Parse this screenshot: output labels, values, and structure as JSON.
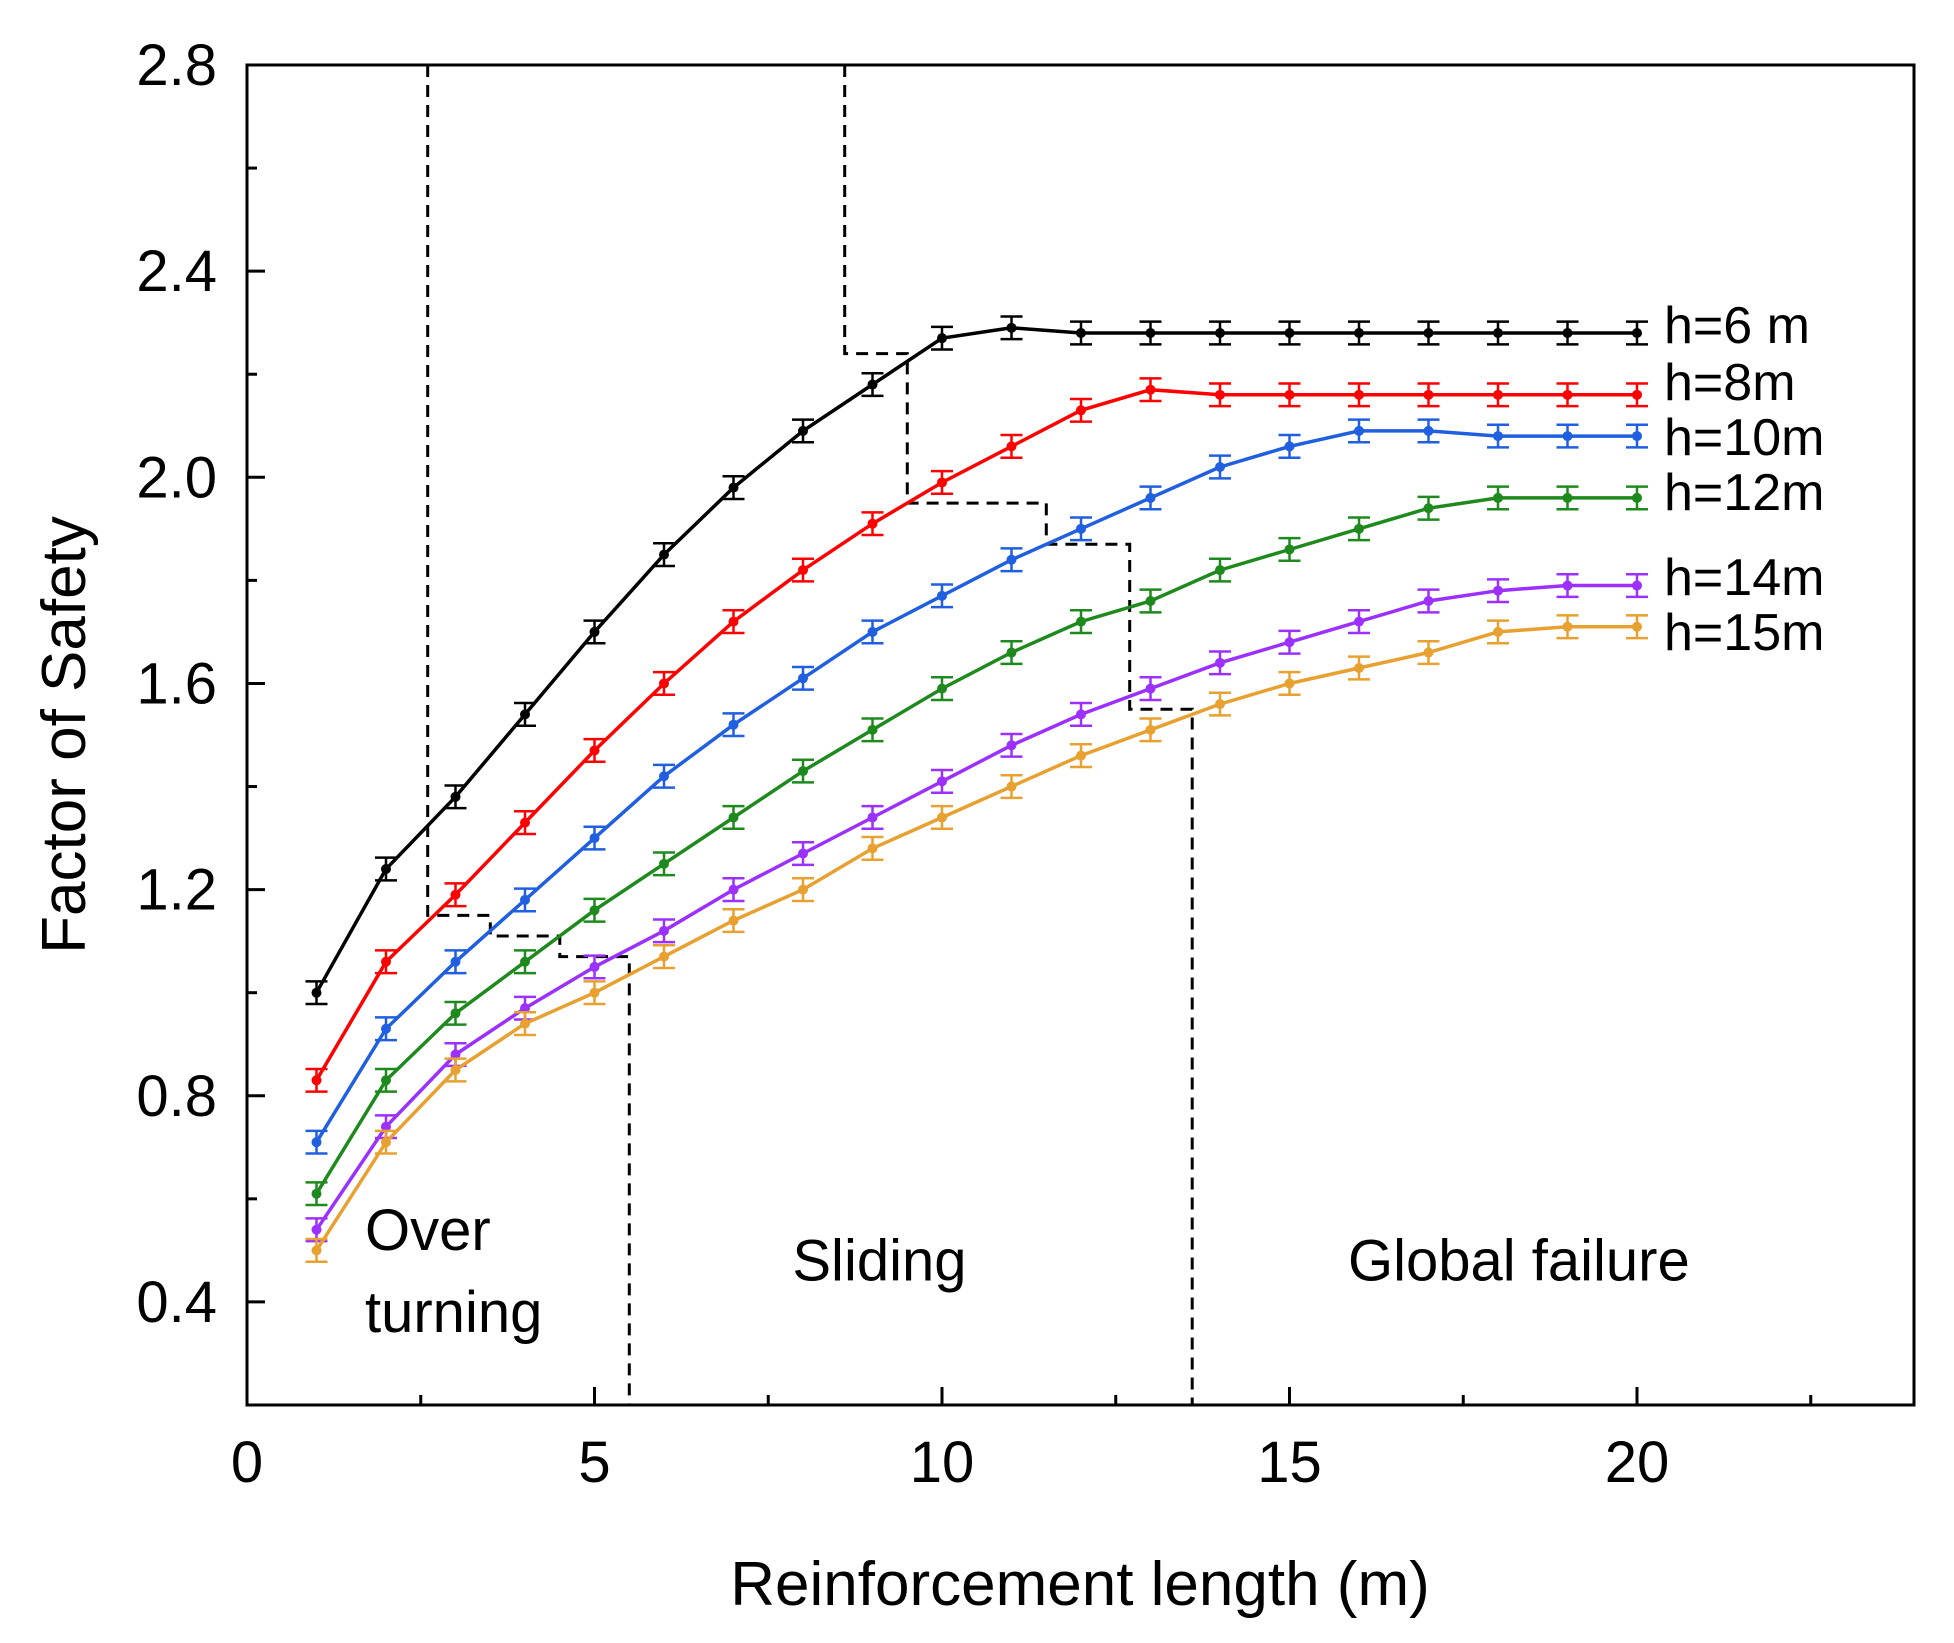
{
  "chart_data": {
    "type": "line",
    "title": "",
    "xlabel": "Reinforcement length (m)",
    "ylabel": "Factor of Safety",
    "xlim": [
      0,
      24
    ],
    "ylim": [
      0.2,
      2.8
    ],
    "xticks": [
      0,
      5,
      10,
      15,
      20
    ],
    "xtick_labels": [
      "0",
      "5",
      "10",
      "15",
      "20"
    ],
    "yticks": [
      0.4,
      0.8,
      1.2,
      1.6,
      2.0,
      2.4,
      2.8
    ],
    "ytick_labels": [
      "0.4",
      "0.8",
      "1.2",
      "1.6",
      "2.0",
      "2.4",
      "2.8"
    ],
    "grid": false,
    "error_bars": true,
    "x": [
      1,
      2,
      3,
      4,
      5,
      6,
      7,
      8,
      9,
      10,
      11,
      12,
      13,
      14,
      15,
      16,
      17,
      18,
      19,
      20
    ],
    "series": [
      {
        "name": "h=6 m",
        "color": "#000000",
        "values": [
          1.0,
          1.24,
          1.38,
          1.54,
          1.7,
          1.85,
          1.98,
          2.09,
          2.18,
          2.27,
          2.29,
          2.28,
          2.28,
          2.28,
          2.28,
          2.28,
          2.28,
          2.28,
          2.28,
          2.28
        ]
      },
      {
        "name": "h=8m",
        "color": "#ff0000",
        "values": [
          0.83,
          1.06,
          1.19,
          1.33,
          1.47,
          1.6,
          1.72,
          1.82,
          1.91,
          1.99,
          2.06,
          2.13,
          2.17,
          2.16,
          2.16,
          2.16,
          2.16,
          2.16,
          2.16,
          2.16
        ]
      },
      {
        "name": "h=10m",
        "color": "#1f5fe0",
        "values": [
          0.71,
          0.93,
          1.06,
          1.18,
          1.3,
          1.42,
          1.52,
          1.61,
          1.7,
          1.77,
          1.84,
          1.9,
          1.96,
          2.02,
          2.06,
          2.09,
          2.09,
          2.08,
          2.08,
          2.08
        ]
      },
      {
        "name": "h=12m",
        "color": "#1e8a1e",
        "values": [
          0.61,
          0.83,
          0.96,
          1.06,
          1.16,
          1.25,
          1.34,
          1.43,
          1.51,
          1.59,
          1.66,
          1.72,
          1.76,
          1.82,
          1.86,
          1.9,
          1.94,
          1.96,
          1.96,
          1.96
        ]
      },
      {
        "name": "h=14m",
        "color": "#9b30ff",
        "values": [
          0.54,
          0.74,
          0.88,
          0.97,
          1.05,
          1.12,
          1.2,
          1.27,
          1.34,
          1.41,
          1.48,
          1.54,
          1.59,
          1.64,
          1.68,
          1.72,
          1.76,
          1.78,
          1.79,
          1.79
        ]
      },
      {
        "name": "h=15m",
        "color": "#e8a030",
        "values": [
          0.5,
          0.71,
          0.85,
          0.94,
          1.0,
          1.07,
          1.14,
          1.2,
          1.28,
          1.34,
          1.4,
          1.46,
          1.51,
          1.56,
          1.6,
          1.63,
          1.66,
          1.7,
          1.71,
          1.71
        ]
      }
    ],
    "boundaries": [
      {
        "name": "overturning-sliding",
        "points": [
          [
            2.6,
            2.8
          ],
          [
            2.6,
            1.15
          ],
          [
            3.5,
            1.15
          ],
          [
            3.5,
            1.11
          ],
          [
            4.5,
            1.11
          ],
          [
            4.5,
            1.07
          ],
          [
            5.5,
            1.07
          ],
          [
            5.5,
            0.2
          ]
        ]
      },
      {
        "name": "sliding-global",
        "points": [
          [
            8.6,
            2.8
          ],
          [
            8.6,
            2.24
          ],
          [
            9.5,
            2.24
          ],
          [
            9.5,
            1.95
          ],
          [
            11.5,
            1.95
          ],
          [
            11.5,
            1.87
          ],
          [
            12.7,
            1.87
          ],
          [
            12.7,
            1.55
          ],
          [
            13.6,
            1.55
          ],
          [
            13.6,
            0.2
          ]
        ]
      }
    ],
    "annotations": [
      {
        "name": "overturning",
        "lines": [
          "Over",
          "turning"
        ],
        "x": 1.7,
        "y": [
          0.54,
          0.38
        ]
      },
      {
        "name": "sliding",
        "lines": [
          "Sliding"
        ],
        "x": 9.1,
        "y": [
          0.48
        ]
      },
      {
        "name": "global-failure",
        "lines": [
          "Global failure"
        ],
        "x": 18.3,
        "y": [
          0.48
        ]
      }
    ]
  }
}
